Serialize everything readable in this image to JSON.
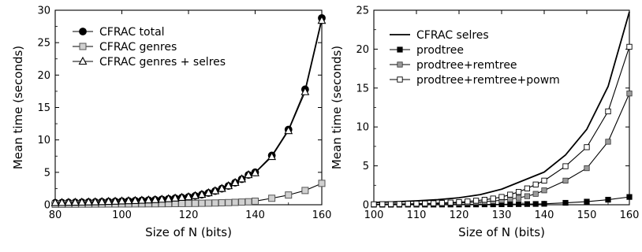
{
  "chart_data": [
    {
      "type": "line",
      "xlabel": "Size of N (bits)",
      "ylabel": "Mean time (seconds)",
      "xlim": [
        80,
        160
      ],
      "ylim": [
        0,
        30
      ],
      "xticks": [
        80,
        100,
        120,
        140,
        160
      ],
      "yticks": [
        0,
        5,
        10,
        15,
        20,
        25,
        30
      ],
      "grid": false,
      "legend_position": "top-left",
      "series": [
        {
          "name": "CFRAC total",
          "marker": "filled-circle",
          "color": "#000000",
          "x": [
            80,
            82,
            84,
            86,
            88,
            90,
            92,
            94,
            96,
            98,
            100,
            102,
            104,
            106,
            108,
            110,
            112,
            114,
            116,
            118,
            120,
            122,
            124,
            126,
            128,
            130,
            132,
            134,
            136,
            138,
            140,
            145,
            150,
            155,
            160
          ],
          "y": [
            0.3,
            0.32,
            0.34,
            0.36,
            0.38,
            0.4,
            0.42,
            0.45,
            0.48,
            0.51,
            0.55,
            0.58,
            0.62,
            0.66,
            0.7,
            0.75,
            0.82,
            0.9,
            1.0,
            1.1,
            1.2,
            1.37,
            1.57,
            1.82,
            2.12,
            2.48,
            2.9,
            3.4,
            3.95,
            4.6,
            5.0,
            7.6,
            11.6,
            17.8,
            28.8
          ]
        },
        {
          "name": "CFRAC genres",
          "marker": "open-square-gray",
          "color": "#bfbfbf",
          "x": [
            80,
            82,
            84,
            86,
            88,
            90,
            92,
            94,
            96,
            98,
            100,
            102,
            104,
            106,
            108,
            110,
            112,
            114,
            116,
            118,
            120,
            122,
            124,
            126,
            128,
            130,
            132,
            134,
            136,
            138,
            140,
            145,
            150,
            155,
            160
          ],
          "y": [
            0.08,
            0.08,
            0.09,
            0.09,
            0.1,
            0.1,
            0.11,
            0.11,
            0.12,
            0.12,
            0.13,
            0.13,
            0.14,
            0.14,
            0.15,
            0.15,
            0.16,
            0.17,
            0.18,
            0.19,
            0.2,
            0.21,
            0.23,
            0.25,
            0.27,
            0.3,
            0.33,
            0.37,
            0.41,
            0.46,
            0.55,
            1.0,
            1.5,
            2.2,
            3.3
          ]
        },
        {
          "name": "CFRAC genres + selres",
          "marker": "open-triangle",
          "color": "#000000",
          "x": [
            80,
            82,
            84,
            86,
            88,
            90,
            92,
            94,
            96,
            98,
            100,
            102,
            104,
            106,
            108,
            110,
            112,
            114,
            116,
            118,
            120,
            122,
            124,
            126,
            128,
            130,
            132,
            134,
            136,
            138,
            140,
            145,
            150,
            155,
            160
          ],
          "y": [
            0.3,
            0.32,
            0.34,
            0.36,
            0.38,
            0.4,
            0.42,
            0.45,
            0.48,
            0.51,
            0.55,
            0.58,
            0.62,
            0.66,
            0.7,
            0.75,
            0.82,
            0.9,
            1.0,
            1.1,
            1.2,
            1.37,
            1.57,
            1.82,
            2.12,
            2.48,
            2.9,
            3.4,
            3.95,
            4.6,
            4.9,
            7.4,
            11.4,
            17.4,
            28.4
          ]
        }
      ]
    },
    {
      "type": "line",
      "xlabel": "Size of N (bits)",
      "ylabel": "Mean time (seconds)",
      "xlim": [
        100,
        160
      ],
      "ylim": [
        0,
        25
      ],
      "xticks": [
        100,
        110,
        120,
        130,
        140,
        150,
        160
      ],
      "yticks": [
        0,
        5,
        10,
        15,
        20,
        25
      ],
      "grid": false,
      "legend_position": "top-left",
      "series": [
        {
          "name": "CFRAC selres",
          "marker": "none",
          "color": "#000000",
          "x": [
            100,
            105,
            110,
            115,
            120,
            125,
            130,
            135,
            140,
            145,
            150,
            155,
            160
          ],
          "y": [
            0.3,
            0.38,
            0.5,
            0.65,
            0.9,
            1.3,
            2.0,
            3.1,
            4.2,
            6.4,
            9.7,
            15.2,
            24.8
          ]
        },
        {
          "name": "prodtree",
          "marker": "filled-square",
          "color": "#000000",
          "x": [
            100,
            102,
            104,
            106,
            108,
            110,
            112,
            114,
            116,
            118,
            120,
            122,
            124,
            126,
            128,
            130,
            132,
            134,
            136,
            138,
            140,
            145,
            150,
            155,
            160
          ],
          "y": [
            0.01,
            0.01,
            0.01,
            0.01,
            0.02,
            0.02,
            0.02,
            0.02,
            0.03,
            0.03,
            0.03,
            0.04,
            0.04,
            0.05,
            0.05,
            0.06,
            0.07,
            0.08,
            0.09,
            0.1,
            0.12,
            0.25,
            0.4,
            0.65,
            1.0
          ]
        },
        {
          "name": "prodtree+remtree",
          "marker": "filled-square-gray",
          "color": "#999999",
          "x": [
            100,
            102,
            104,
            106,
            108,
            110,
            112,
            114,
            116,
            118,
            120,
            122,
            124,
            126,
            128,
            130,
            132,
            134,
            136,
            138,
            140,
            145,
            150,
            155,
            160
          ],
          "y": [
            0.05,
            0.06,
            0.07,
            0.08,
            0.09,
            0.1,
            0.12,
            0.14,
            0.16,
            0.19,
            0.22,
            0.27,
            0.33,
            0.4,
            0.48,
            0.58,
            0.72,
            0.9,
            1.1,
            1.4,
            1.85,
            3.1,
            4.7,
            8.1,
            14.3
          ]
        },
        {
          "name": "prodtree+remtree+powm",
          "marker": "open-square",
          "color": "#000000",
          "x": [
            100,
            102,
            104,
            106,
            108,
            110,
            112,
            114,
            116,
            118,
            120,
            122,
            124,
            126,
            128,
            130,
            132,
            134,
            136,
            138,
            140,
            145,
            150,
            155,
            160
          ],
          "y": [
            0.06,
            0.07,
            0.08,
            0.1,
            0.12,
            0.14,
            0.16,
            0.19,
            0.23,
            0.28,
            0.34,
            0.42,
            0.52,
            0.64,
            0.8,
            1.0,
            1.3,
            1.65,
            2.1,
            2.6,
            3.1,
            4.95,
            7.4,
            12.0,
            20.3
          ]
        }
      ]
    }
  ]
}
